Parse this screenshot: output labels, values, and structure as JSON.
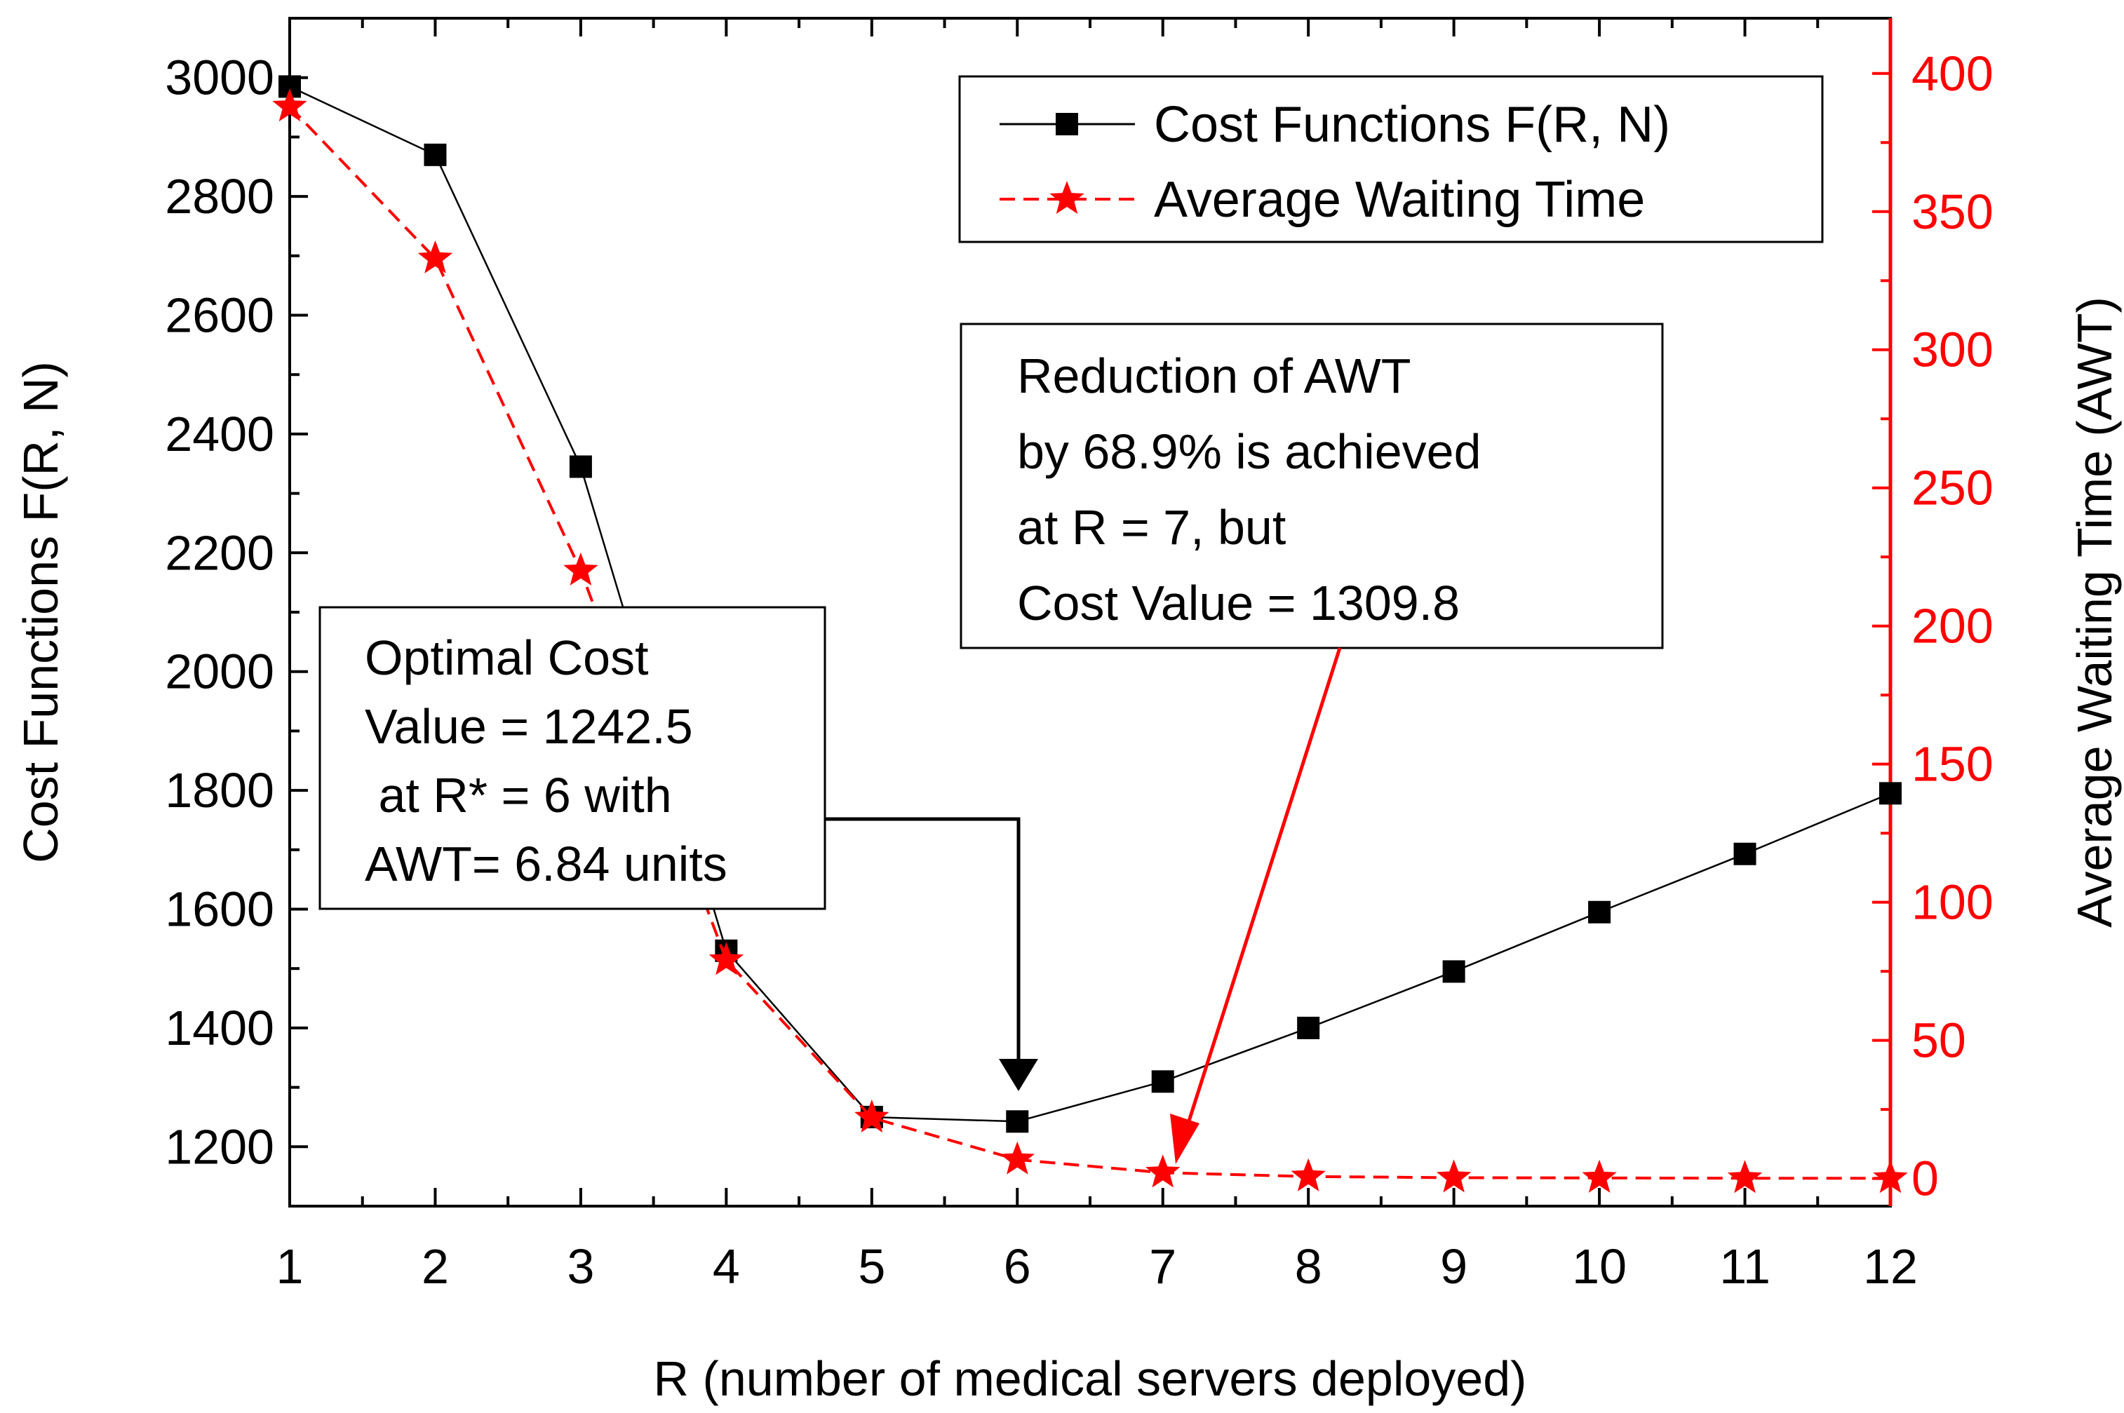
{
  "chart_data": {
    "type": "line",
    "xlabel": "R (number of medical servers deployed)",
    "ylabel_left": "Cost Functions F(R, N)",
    "ylabel_right": "Average Waiting Time (AWT)",
    "xlim": [
      1,
      12
    ],
    "ylim_left": [
      1100,
      3100
    ],
    "ylim_right": [
      -10,
      420
    ],
    "x_ticks": [
      1,
      2,
      3,
      4,
      5,
      6,
      7,
      8,
      9,
      10,
      11,
      12
    ],
    "y_left_ticks": [
      1200,
      1400,
      1600,
      1800,
      2000,
      2200,
      2400,
      2600,
      2800,
      3000
    ],
    "y_right_ticks": [
      0,
      50,
      100,
      150,
      200,
      250,
      300,
      350,
      400
    ],
    "grid": false,
    "legend_position": "top-right",
    "colors": {
      "cost": "#000000",
      "awt": "#ff0000"
    },
    "series": [
      {
        "name": "Cost Functions F(R, N)",
        "axis": "left",
        "marker": "square",
        "line": "solid",
        "x": [
          1,
          2,
          3,
          4,
          5,
          6,
          7,
          8,
          9,
          10,
          11,
          12
        ],
        "values": [
          2985,
          2870,
          2345,
          1530,
          1250,
          1242.5,
          1309.8,
          1400,
          1495,
          1595,
          1693,
          1795
        ]
      },
      {
        "name": "Average Waiting Time",
        "axis": "right",
        "marker": "star",
        "line": "dashed",
        "x": [
          1,
          2,
          3,
          4,
          5,
          6,
          7,
          8,
          9,
          10,
          11,
          12
        ],
        "values": [
          388,
          333,
          220,
          79,
          22,
          6.84,
          2.1,
          0.7,
          0.3,
          0.2,
          0.1,
          0.1
        ]
      }
    ],
    "annotations": [
      {
        "id": "optimal",
        "lines": [
          "Optimal Cost",
          "Value = 1242.5",
          " at R* = 6 with",
          "AWT= 6.84 units"
        ],
        "target_x": 6,
        "target_series": "Cost Functions F(R, N)",
        "arrow_color": "#000000"
      },
      {
        "id": "reduction",
        "lines": [
          "Reduction of AWT",
          "by 68.9% is achieved",
          "at R = 7, but",
          "Cost Value = 1309.8"
        ],
        "target_x": 7,
        "target_series": "Average Waiting Time",
        "arrow_color": "#ff0000"
      }
    ]
  }
}
